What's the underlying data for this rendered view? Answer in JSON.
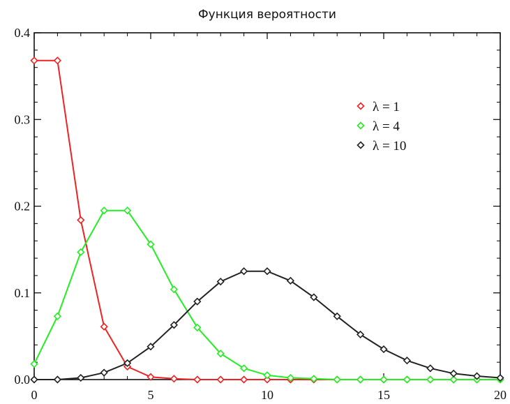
{
  "chart_data": {
    "type": "line",
    "title": "Функция вероятности",
    "xlabel": "",
    "ylabel": "",
    "xlim": [
      0,
      20
    ],
    "ylim": [
      0,
      0.4
    ],
    "x_ticks": [
      0,
      5,
      10,
      15,
      20
    ],
    "x_tick_labels": [
      "0",
      "5",
      "10",
      "15",
      "20"
    ],
    "y_ticks": [
      0,
      0.1,
      0.2,
      0.3,
      0.4
    ],
    "y_tick_labels": [
      "0.0",
      "0.1",
      "0.2",
      "0.3",
      "0.4"
    ],
    "grid": false,
    "legend_position": "top-right",
    "marker": "diamond",
    "series": [
      {
        "name": "λ = 1",
        "color": "#ee2222",
        "x": [
          0,
          1,
          2,
          3,
          4,
          5,
          6,
          7,
          8,
          9,
          10,
          11,
          12,
          13,
          14,
          15,
          16,
          17,
          18,
          19,
          20
        ],
        "values": [
          0.368,
          0.368,
          0.184,
          0.061,
          0.015,
          0.003,
          0.001,
          0,
          0,
          0,
          0,
          0,
          0,
          0,
          0,
          0,
          0,
          0,
          0,
          0,
          0
        ]
      },
      {
        "name": "λ = 4",
        "color": "#22ee22",
        "x": [
          0,
          1,
          2,
          3,
          4,
          5,
          6,
          7,
          8,
          9,
          10,
          11,
          12,
          13,
          14,
          15,
          16,
          17,
          18,
          19,
          20
        ],
        "values": [
          0.018,
          0.073,
          0.147,
          0.195,
          0.195,
          0.156,
          0.104,
          0.06,
          0.03,
          0.013,
          0.005,
          0.002,
          0.001,
          0,
          0,
          0,
          0,
          0,
          0,
          0,
          0
        ]
      },
      {
        "name": "λ = 10",
        "color": "#222222",
        "x": [
          0,
          1,
          2,
          3,
          4,
          5,
          6,
          7,
          8,
          9,
          10,
          11,
          12,
          13,
          14,
          15,
          16,
          17,
          18,
          19,
          20
        ],
        "values": [
          0.0,
          0.0,
          0.002,
          0.008,
          0.019,
          0.038,
          0.063,
          0.09,
          0.113,
          0.125,
          0.125,
          0.114,
          0.095,
          0.073,
          0.052,
          0.035,
          0.022,
          0.013,
          0.007,
          0.004,
          0.002
        ]
      }
    ]
  }
}
